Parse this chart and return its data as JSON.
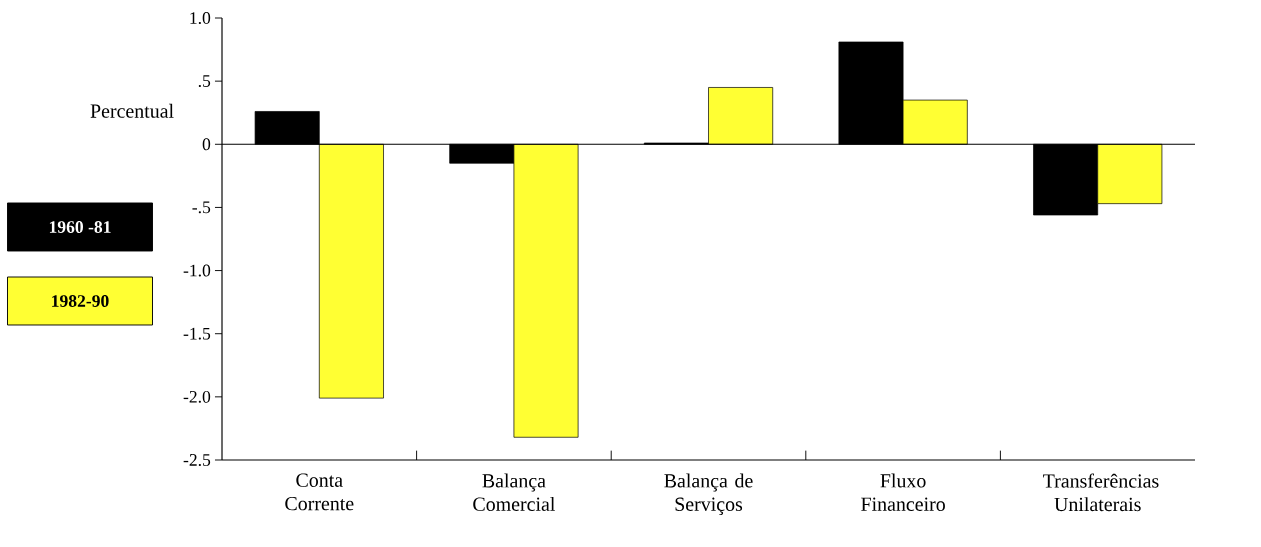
{
  "chart_data": {
    "type": "bar",
    "ylabel": "Percentual",
    "categories": [
      "Conta Corrente",
      "Balança Comercial",
      "Balança de Serviços",
      "Fluxo Financeiro",
      "Transferências Unilaterais"
    ],
    "series": [
      {
        "name": "1960 -81",
        "color": "#000000",
        "values": [
          0.26,
          -0.15,
          0.01,
          0.81,
          -0.56
        ]
      },
      {
        "name": "1982-90",
        "color": "#ffff33",
        "values": [
          -2.01,
          -2.32,
          0.45,
          0.35,
          -0.47
        ]
      }
    ],
    "ylim": [
      -2.5,
      1.0
    ],
    "yticks": [
      {
        "value": 1.0,
        "label": "1.0"
      },
      {
        "value": 0.5,
        "label": ".5"
      },
      0,
      {
        "value": -0.5,
        "label": "-.5"
      },
      {
        "value": -1.0,
        "label": "-1.0"
      },
      -1.5,
      {
        "value": -2.0,
        "label": "-2.0"
      },
      -2.5
    ],
    "legend": "left"
  }
}
